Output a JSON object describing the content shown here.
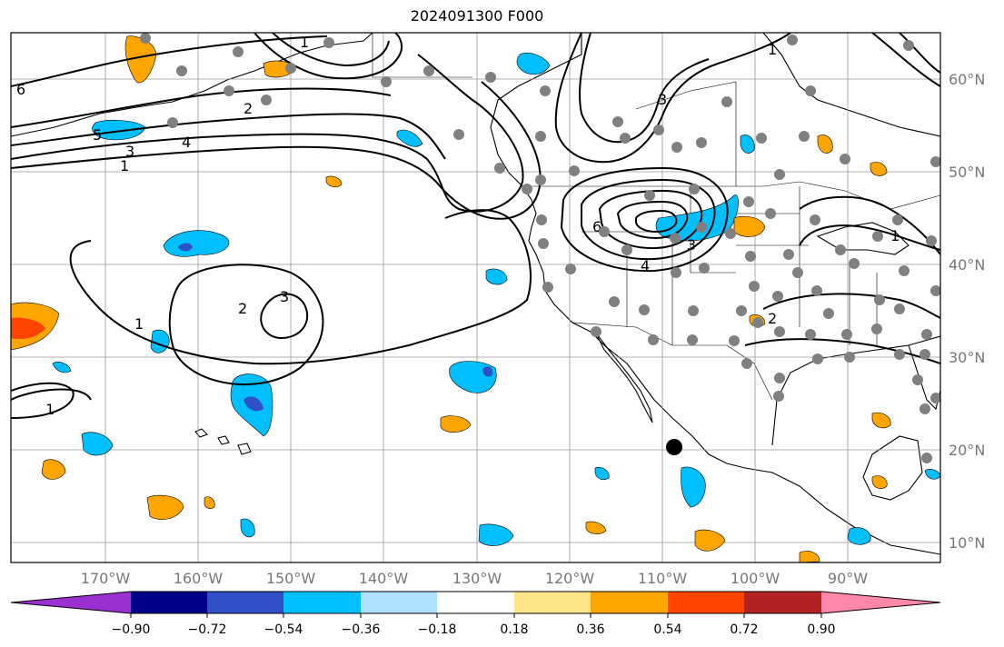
{
  "title": "2024091300 F000",
  "map": {
    "lat_labels": [
      "60°N",
      "50°N",
      "40°N",
      "30°N",
      "20°N",
      "10°N"
    ],
    "lon_labels": [
      "170°W",
      "160°W",
      "150°W",
      "140°W",
      "130°W",
      "120°W",
      "110°W",
      "100°W",
      "90°W"
    ],
    "grid": true,
    "contour_labels": [
      "1",
      "2",
      "3",
      "4",
      "5",
      "6"
    ],
    "colors": {
      "coastline": "#000000",
      "grid": "#999999",
      "station": "#808080",
      "marker": "#000000"
    }
  },
  "colorbar": {
    "ticks": [
      "−0.90",
      "−0.72",
      "−0.54",
      "−0.36",
      "−0.18",
      "0.18",
      "0.36",
      "0.54",
      "0.72",
      "0.90"
    ],
    "colors": [
      "#9b30d0",
      "#00008b",
      "#3050c8",
      "#00bfff",
      "#b0e0ff",
      "#ffffff",
      "#ffe58a",
      "#ffa500",
      "#ff4500",
      "#b22222",
      "#ff88aa"
    ]
  }
}
